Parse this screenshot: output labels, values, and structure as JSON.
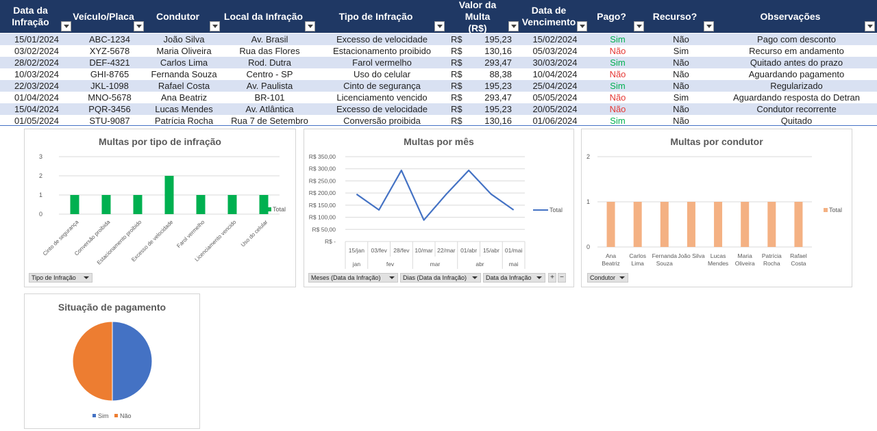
{
  "table": {
    "headers": [
      {
        "line1": "Data da",
        "line2": "Infração"
      },
      {
        "line1": "Veículo/Placa",
        "line2": ""
      },
      {
        "line1": "Condutor",
        "line2": ""
      },
      {
        "line1": "Local da Infração",
        "line2": ""
      },
      {
        "line1": "Tipo de Infração",
        "line2": ""
      },
      {
        "line1": "Valor da Multa",
        "line2": "(R$)"
      },
      {
        "line1": "Data de",
        "line2": "Vencimento"
      },
      {
        "line1": "Pago?",
        "line2": ""
      },
      {
        "line1": "Recurso?",
        "line2": ""
      },
      {
        "line1": "Observações",
        "line2": ""
      }
    ],
    "currency_symbol": "R$",
    "rows": [
      {
        "data": "15/01/2024",
        "placa": "ABC-1234",
        "condutor": "João Silva",
        "local": "Av. Brasil",
        "tipo": "Excesso de velocidade",
        "valor": "195,23",
        "vencimento": "15/02/2024",
        "pago": "Sim",
        "recurso": "Não",
        "obs": "Pago com desconto"
      },
      {
        "data": "03/02/2024",
        "placa": "XYZ-5678",
        "condutor": "Maria Oliveira",
        "local": "Rua das Flores",
        "tipo": "Estacionamento proibido",
        "valor": "130,16",
        "vencimento": "05/03/2024",
        "pago": "Não",
        "recurso": "Sim",
        "obs": "Recurso em andamento"
      },
      {
        "data": "28/02/2024",
        "placa": "DEF-4321",
        "condutor": "Carlos Lima",
        "local": "Rod. Dutra",
        "tipo": "Farol vermelho",
        "valor": "293,47",
        "vencimento": "30/03/2024",
        "pago": "Sim",
        "recurso": "Não",
        "obs": "Quitado antes do prazo"
      },
      {
        "data": "10/03/2024",
        "placa": "GHI-8765",
        "condutor": "Fernanda Souza",
        "local": "Centro - SP",
        "tipo": "Uso do celular",
        "valor": "88,38",
        "vencimento": "10/04/2024",
        "pago": "Não",
        "recurso": "Não",
        "obs": "Aguardando pagamento"
      },
      {
        "data": "22/03/2024",
        "placa": "JKL-1098",
        "condutor": "Rafael Costa",
        "local": "Av. Paulista",
        "tipo": "Cinto de segurança",
        "valor": "195,23",
        "vencimento": "25/04/2024",
        "pago": "Sim",
        "recurso": "Não",
        "obs": "Regularizado"
      },
      {
        "data": "01/04/2024",
        "placa": "MNO-5678",
        "condutor": "Ana Beatriz",
        "local": "BR-101",
        "tipo": "Licenciamento vencido",
        "valor": "293,47",
        "vencimento": "05/05/2024",
        "pago": "Não",
        "recurso": "Sim",
        "obs": "Aguardando resposta do Detran"
      },
      {
        "data": "15/04/2024",
        "placa": "PQR-3456",
        "condutor": "Lucas Mendes",
        "local": "Av. Atlântica",
        "tipo": "Excesso de velocidade",
        "valor": "195,23",
        "vencimento": "20/05/2024",
        "pago": "Não",
        "recurso": "Não",
        "obs": "Condutor recorrente"
      },
      {
        "data": "01/05/2024",
        "placa": "STU-9087",
        "condutor": "Patrícia Rocha",
        "local": "Rua 7 de Setembro",
        "tipo": "Conversão proibida",
        "valor": "130,16",
        "vencimento": "01/06/2024",
        "pago": "Sim",
        "recurso": "Não",
        "obs": "Quitado"
      }
    ],
    "colors": {
      "header_bg": "#1f3864",
      "band_bg": "#d9e1f2",
      "sim": "#00b050",
      "nao": "#e53935"
    }
  },
  "chart_data": [
    {
      "type": "bar",
      "title": "Multas por tipo de infração",
      "categories": [
        "Cinto de segurança",
        "Conversão proibida",
        "Estacionamento proibido",
        "Excesso de velocidade",
        "Farol vermelho",
        "Licenciamento vencido",
        "Uso do celular"
      ],
      "series": [
        {
          "name": "Total",
          "values": [
            1,
            1,
            1,
            2,
            1,
            1,
            1
          ],
          "color": "#00b050"
        }
      ],
      "y_ticks": [
        "0",
        "1",
        "2",
        "3"
      ],
      "ylim": [
        0,
        3
      ],
      "legend": "right",
      "field_button": "Tipo de Infração"
    },
    {
      "type": "line",
      "title": "Multas por mês",
      "x_days": [
        "15/jan",
        "03/fev",
        "28/fev",
        "10/mar",
        "22/mar",
        "01/abr",
        "15/abr",
        "01/mai"
      ],
      "x_months": [
        {
          "label": "jan",
          "span": 1
        },
        {
          "label": "fev",
          "span": 2
        },
        {
          "label": "mar",
          "span": 2
        },
        {
          "label": "abr",
          "span": 2
        },
        {
          "label": "mai",
          "span": 1
        }
      ],
      "series": [
        {
          "name": "Total",
          "values": [
            195.23,
            130.16,
            293.47,
            88.38,
            195.23,
            293.47,
            195.23,
            130.16
          ],
          "color": "#4472c4"
        }
      ],
      "y_ticks": [
        "R$ -",
        "R$ 50,00",
        "R$ 100,00",
        "R$ 150,00",
        "R$ 200,00",
        "R$ 250,00",
        "R$ 300,00",
        "R$ 350,00"
      ],
      "ylim": [
        0,
        350
      ],
      "legend": "right",
      "field_buttons": [
        "Meses (Data da Infração)",
        "Dias (Data da Infração)",
        "Data da Infração"
      ],
      "expand_buttons": [
        "+",
        "−"
      ]
    },
    {
      "type": "bar",
      "title": "Multas por condutor",
      "categories": [
        [
          "Ana",
          "Beatriz"
        ],
        [
          "Carlos",
          "Lima"
        ],
        [
          "Fernanda",
          "Souza"
        ],
        [
          "João Silva"
        ],
        [
          "Lucas",
          "Mendes"
        ],
        [
          "Maria",
          "Oliveira"
        ],
        [
          "Patrícia",
          "Rocha"
        ],
        [
          "Rafael",
          "Costa"
        ]
      ],
      "series": [
        {
          "name": "Total",
          "values": [
            1,
            1,
            1,
            1,
            1,
            1,
            1,
            1
          ],
          "color": "#f4b183"
        }
      ],
      "y_ticks": [
        "0",
        "1",
        "2"
      ],
      "ylim": [
        0,
        2
      ],
      "legend": "right",
      "field_button": "Condutor"
    },
    {
      "type": "pie",
      "title": "Situação de pagamento",
      "slices": [
        {
          "label": "Sim",
          "value": 4,
          "color": "#4472c4"
        },
        {
          "label": "Não",
          "value": 4,
          "color": "#ed7d31"
        }
      ],
      "legend": "bottom"
    }
  ]
}
